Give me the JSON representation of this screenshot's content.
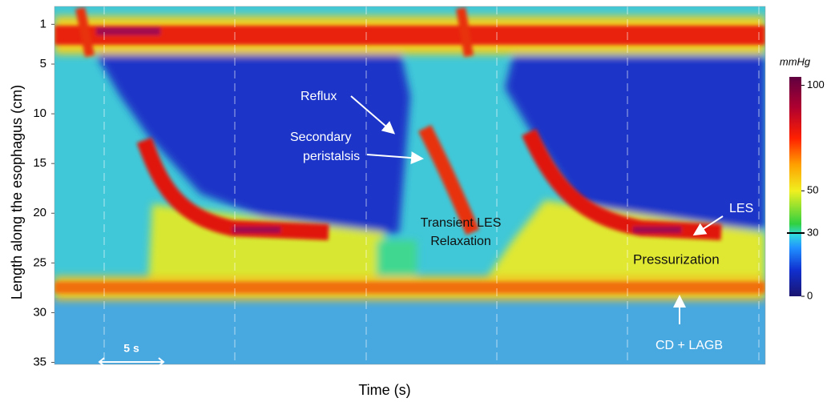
{
  "chart_data": {
    "type": "heatmap",
    "x_label": "Time (s)",
    "y_label": "Length along the esophagus (cm)",
    "ylim": [
      -0.8,
      35.2
    ],
    "yticks": [
      1,
      5,
      10,
      15,
      20,
      25,
      30,
      35
    ],
    "colorbar": {
      "title": "mmHg",
      "lim": [
        0,
        104
      ],
      "ticks": [
        0,
        30,
        50,
        100
      ],
      "threshold": 30
    },
    "annotations": {
      "reflux": "Reflux",
      "secondary_peristalsis": [
        "Secondary",
        "peristalsis"
      ],
      "transient_les": [
        "Transient LES",
        "Relaxation"
      ],
      "les": "LES",
      "pressurization": "Pressurization",
      "cd_lagb": "CD + LAGB",
      "scale_bar": "5 s"
    }
  }
}
